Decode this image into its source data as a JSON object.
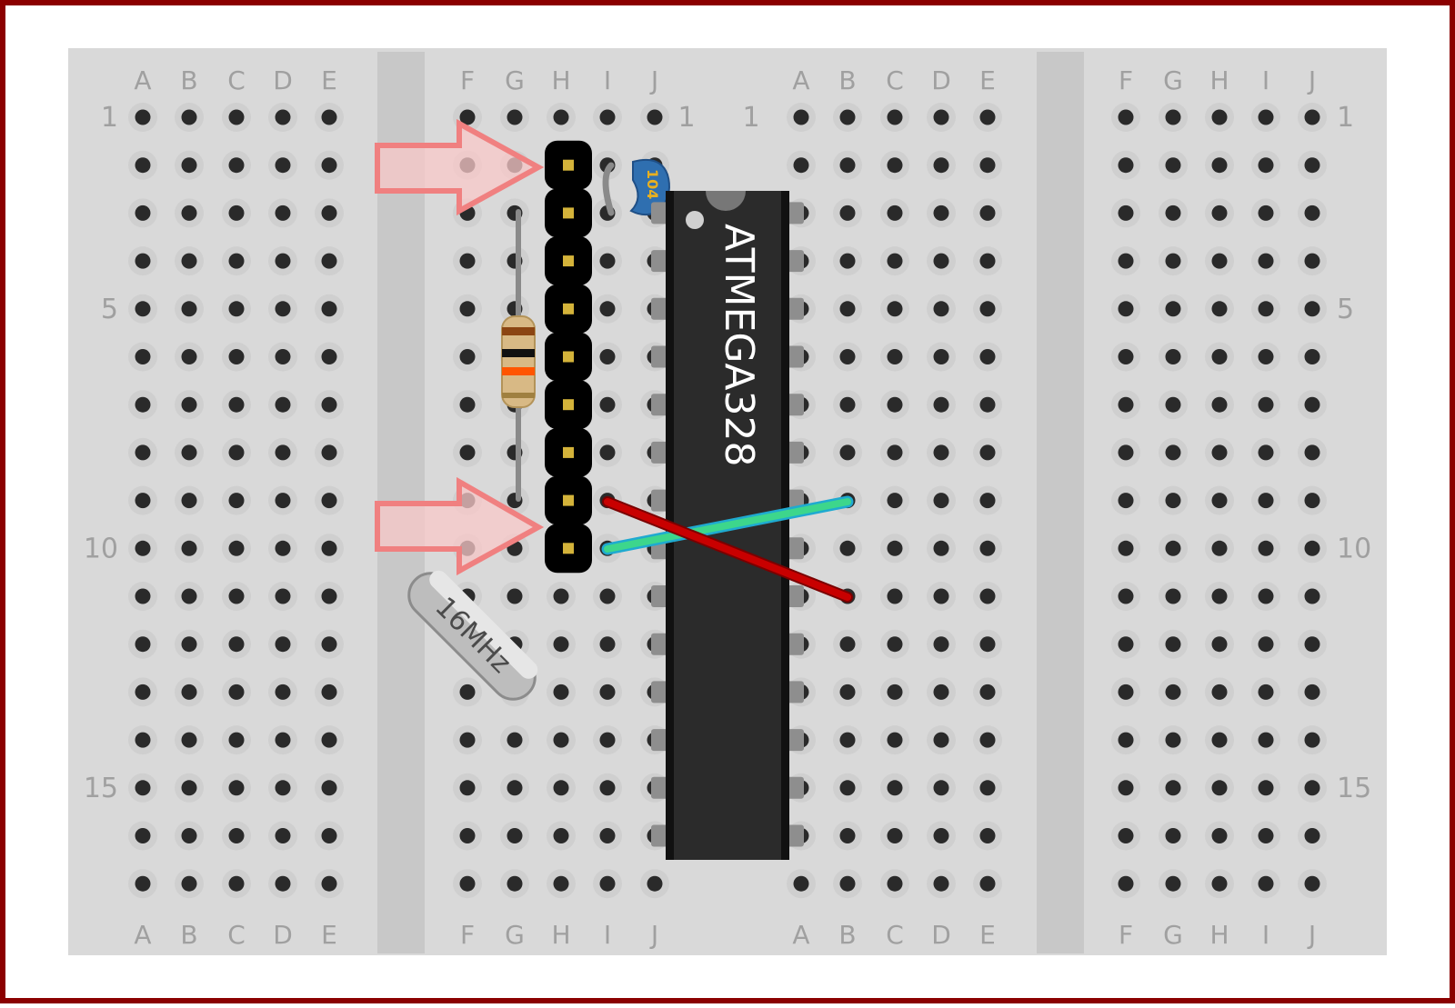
{
  "breadboard": {
    "left_columns": [
      "A",
      "B",
      "C",
      "D",
      "E"
    ],
    "left_columns_2": [
      "F",
      "G",
      "H",
      "I",
      "J"
    ],
    "right_columns": [
      "A",
      "B",
      "C",
      "D",
      "E"
    ],
    "right_columns_2": [
      "F",
      "G",
      "H",
      "I",
      "J"
    ],
    "row_count": 17,
    "row_labels": [
      {
        "row": 1,
        "text": "1"
      },
      {
        "row": 5,
        "text": "5"
      },
      {
        "row": 10,
        "text": "10"
      },
      {
        "row": 15,
        "text": "15"
      }
    ],
    "middle_row_labels": [
      {
        "row": 1,
        "text": "1"
      }
    ]
  },
  "components": {
    "chip_label": "ATMEGA328",
    "crystal_label": "16MHz",
    "capacitor_label": "104",
    "header_pin_count": 9
  },
  "colors": {
    "frame": "#8b0000",
    "board": "#d9d9d9",
    "channel": "#c8c8c8",
    "hole": "#2a2a2a",
    "label": "#a0a0a0",
    "chip": "#2b2b2b",
    "red_wire": "#c00000",
    "green_wire": "#3dd68c",
    "arrow": "#f08080",
    "header": "#000000",
    "header_pin": "#d4b33a",
    "capacitor": "#2f6fb0"
  }
}
